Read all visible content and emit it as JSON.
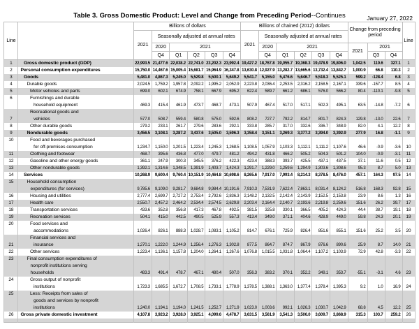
{
  "page": {
    "date": "January 27, 2022",
    "title_main": "Table 3. Gross Domestic Product: Level and Change from Preceding Period",
    "title_suffix": "--Continues"
  },
  "header": {
    "line_label": "Line",
    "group_current": "Billions of dollars",
    "group_chained": "Billions of chained (2012) dollars",
    "group_change": "Change from preceding period",
    "saar": "Seasonally adjusted at annual rates",
    "year_2021": "2021",
    "year_2020": "2020",
    "q_labels": [
      "Q4",
      "Q1",
      "Q2",
      "Q3",
      "Q4"
    ],
    "change_year": "2021",
    "change_year_group": "2021",
    "change_quarters": [
      "Q3",
      "Q4"
    ]
  },
  "rows": [
    {
      "line": 1,
      "label_lines": [
        "Gross domestic product (GDP)"
      ],
      "indent": 1,
      "bold": true,
      "values": [
        "22,993.5",
        "21,477.6",
        "22,038.2",
        "22,741.0",
        "23,202.3",
        "23,992.4",
        "19,427.2",
        "18,767.8",
        "19,055.7",
        "19,368.3",
        "19,478.9",
        "19,806.0",
        "1,042.5",
        "110.6",
        "327.1"
      ]
    },
    {
      "line": 2,
      "label_lines": [
        "Personal consumption expenditures"
      ],
      "indent": 0,
      "bold": true,
      "values": [
        "15,750.0",
        "14,467.6",
        "15,005.4",
        "15,681.7",
        "15,964.9",
        "16,347.8",
        "13,630.8",
        "12,927.9",
        "13,282.7",
        "13,665.6",
        "13,732.4",
        "13,842.7",
        "1,000.9",
        "66.8",
        "110.3"
      ]
    },
    {
      "line": 3,
      "label_lines": [
        "Goods"
      ],
      "indent": 1,
      "bold": true,
      "values": [
        "5,481.0",
        "4,867.3",
        "5,245.0",
        "5,529.8",
        "5,500.1",
        "5,649.2",
        "5,541.7",
        "5,155.0",
        "5,476.6",
        "5,646.7",
        "5,518.3",
        "5,525.1",
        "599.2",
        "-128.4",
        "6.8"
      ]
    },
    {
      "line": 4,
      "label_lines": [
        "Durable goods"
      ],
      "indent": 2,
      "bold": false,
      "values": [
        "2,024.5",
        "1,759.2",
        "1,957.8",
        "2,092.2",
        "1,995.2",
        "2,052.9",
        "2,223.8",
        "2,036.4",
        "2,253.5",
        "2,316.2",
        "2,158.5",
        "2,167.1",
        "339.6",
        "-157.7",
        "8.5"
      ]
    },
    {
      "line": 5,
      "label_lines": [
        "Motor vehicles and parts"
      ],
      "indent": 3,
      "bold": false,
      "values": [
        "699.0",
        "602.1",
        "674.9",
        "758.1",
        "667.9",
        "695.2",
        "622.4",
        "589.7",
        "661.2",
        "686.1",
        "576.0",
        "566.2",
        "80.4",
        "-110.1",
        "-9.8"
      ]
    },
    {
      "line": 6,
      "label_lines": [
        "Furnishings and durable",
        "household equipment"
      ],
      "indent": 3,
      "bold": false,
      "num_pos": "vt",
      "values": [
        "469.3",
        "415.4",
        "461.9",
        "473.7",
        "468.7",
        "473.1",
        "507.9",
        "467.4",
        "517.0",
        "517.1",
        "502.3",
        "495.1",
        "63.5",
        "-14.8",
        "-7.2"
      ]
    },
    {
      "line": 7,
      "label_lines": [
        "Recreational goods and",
        "vehicles"
      ],
      "indent": 3,
      "bold": false,
      "num_pos": "vb",
      "values": [
        "577.0",
        "508.7",
        "559.4",
        "580.8",
        "575.0",
        "592.6",
        "808.2",
        "727.7",
        "792.2",
        "814.7",
        "801.7",
        "824.3",
        "129.8",
        "-13.0",
        "22.6"
      ]
    },
    {
      "line": 8,
      "label_lines": [
        "Other durable goods"
      ],
      "indent": 3,
      "bold": false,
      "values": [
        "279.2",
        "233.1",
        "261.7",
        "279.6",
        "283.6",
        "292.1",
        "333.8",
        "285.7",
        "317.0",
        "332.6",
        "336.7",
        "348.9",
        "82.0",
        "4.1",
        "12.2"
      ]
    },
    {
      "line": 9,
      "label_lines": [
        "Nondurable goods"
      ],
      "indent": 2,
      "bold": true,
      "values": [
        "3,456.5",
        "3,108.1",
        "3,287.2",
        "3,437.6",
        "3,505.0",
        "3,596.3",
        "3,358.4",
        "3,151.1",
        "3,269.3",
        "3,377.2",
        "3,394.0",
        "3,392.9",
        "277.9",
        "16.8",
        "-1.1"
      ]
    },
    {
      "line": 10,
      "label_lines": [
        "Food and beverages purchased",
        "for off-premises consumption"
      ],
      "indent": 3,
      "bold": false,
      "num_pos": "vt",
      "values": [
        "1,234.7",
        "1,150.0",
        "1,201.5",
        "1,223.4",
        "1,245.3",
        "1,268.5",
        "1,108.5",
        "1,057.9",
        "1,103.3",
        "1,112.1",
        "1,111.2",
        "1,107.6",
        "46.6",
        "-0.9",
        "-3.6"
      ]
    },
    {
      "line": 11,
      "label_lines": [
        "Clothing and footwear"
      ],
      "indent": 3,
      "bold": false,
      "values": [
        "468.7",
        "395.6",
        "436.8",
        "477.0",
        "479.7",
        "481.2",
        "494.2",
        "431.8",
        "466.2",
        "505.2",
        "504.3",
        "501.2",
        "104.0",
        "-0.9",
        "-3.1"
      ]
    },
    {
      "line": 12,
      "label_lines": [
        "Gasoline and other energy goods"
      ],
      "indent": 3,
      "bold": false,
      "values": [
        "361.1",
        "247.9",
        "300.3",
        "345.5",
        "376.2",
        "422.3",
        "423.4",
        "388.3",
        "393.7",
        "425.5",
        "437.1",
        "437.5",
        "37.1",
        "11.6",
        "0.5"
      ]
    },
    {
      "line": 13,
      "label_lines": [
        "Other nondurable goods"
      ],
      "indent": 3,
      "bold": false,
      "values": [
        "1,392.1",
        "1,314.6",
        "1,348.5",
        "1,391.9",
        "1,403.7",
        "1,424.3",
        "1,291.7",
        "1,229.0",
        "1,259.6",
        "1,294.9",
        "1,303.6",
        "1,308.6",
        "95.3",
        "8.7",
        "5.0"
      ]
    },
    {
      "line": 14,
      "label_lines": [
        "Services"
      ],
      "indent": 1,
      "bold": true,
      "values": [
        "10,268.9",
        "9,600.4",
        "9,760.4",
        "10,151.9",
        "10,464.8",
        "10,698.6",
        "8,265.6",
        "7,917.0",
        "7,993.4",
        "8,214.3",
        "8,378.5",
        "8,476.0",
        "457.1",
        "164.3",
        "97.5"
      ]
    },
    {
      "line": 15,
      "label_lines": [
        "Household consumption",
        "expenditures (for services)"
      ],
      "indent": 2,
      "bold": false,
      "num_pos": "vt",
      "values": [
        "9,785.6",
        "9,109.0",
        "9,281.7",
        "9,684.8",
        "9,984.4",
        "10,191.6",
        "7,910.3",
        "7,531.9",
        "7,622.4",
        "7,863.1",
        "8,031.4",
        "8,124.2",
        "516.8",
        "168.3",
        "92.8"
      ]
    },
    {
      "line": 16,
      "label_lines": [
        "Housing and utilities"
      ],
      "indent": 3,
      "bold": false,
      "values": [
        "2,777.4",
        "2,699.7",
        "2,727.2",
        "2,753.4",
        "2,792.6",
        "2,836.3",
        "2,148.2",
        "2,132.5",
        "2,142.4",
        "2,143.9",
        "2,152.5",
        "2,153.8",
        "23.9",
        "8.6",
        "1.3"
      ]
    },
    {
      "line": 17,
      "label_lines": [
        "Health care"
      ],
      "indent": 3,
      "bold": false,
      "values": [
        "2,550.7",
        "2,457.2",
        "2,464.2",
        "2,534.4",
        "2,574.5",
        "2,629.8",
        "2,203.4",
        "2,164.4",
        "2,140.7",
        "2,193.6",
        "2,219.8",
        "2,259.6",
        "151.6",
        "26.2",
        "39.7"
      ]
    },
    {
      "line": 18,
      "label_lines": [
        "Transportation services"
      ],
      "indent": 3,
      "bold": false,
      "values": [
        "433.6",
        "352.8",
        "356.8",
        "417.3",
        "467.8",
        "492.5",
        "381.5",
        "325.8",
        "330.1",
        "366.5",
        "405.2",
        "424.3",
        "44.4",
        "38.7",
        "19.1"
      ]
    },
    {
      "line": 19,
      "label_lines": [
        "Recreation services"
      ],
      "indent": 3,
      "bold": false,
      "values": [
        "504.1",
        "415.0",
        "442.5",
        "490.5",
        "525.9",
        "557.3",
        "413.4",
        "349.0",
        "371.1",
        "404.6",
        "428.9",
        "449.0",
        "59.8",
        "24.3",
        "20.1"
      ]
    },
    {
      "line": 20,
      "label_lines": [
        "Food services and",
        "accommodations"
      ],
      "indent": 3,
      "bold": false,
      "num_pos": "vt",
      "values": [
        "1,026.4",
        "826.1",
        "888.3",
        "1,028.7",
        "1,083.1",
        "1,105.2",
        "814.7",
        "676.1",
        "725.9",
        "826.4",
        "851.6",
        "855.1",
        "151.6",
        "25.2",
        "3.5"
      ]
    },
    {
      "line": 21,
      "label_lines": [
        "Financial services and",
        "insurance"
      ],
      "indent": 3,
      "bold": false,
      "num_pos": "vb",
      "values": [
        "1,270.1",
        "1,222.0",
        "1,244.9",
        "1,256.4",
        "1,276.3",
        "1,302.8",
        "877.5",
        "864.7",
        "874.7",
        "867.9",
        "876.6",
        "890.6",
        "25.9",
        "8.7",
        "14.0"
      ]
    },
    {
      "line": 22,
      "label_lines": [
        "Other services"
      ],
      "indent": 3,
      "bold": false,
      "values": [
        "1,223.4",
        "1,136.1",
        "1,157.8",
        "1,204.0",
        "1,264.1",
        "1,267.6",
        "1,076.8",
        "1,015.5",
        "1,031.8",
        "1,064.4",
        "1,107.2",
        "1,103.9",
        "72.9",
        "42.8",
        "-3.3"
      ]
    },
    {
      "line": 23,
      "label_lines": [
        "Final consumption expenditures of",
        "nonprofit institutions serving",
        "households"
      ],
      "indent": 2,
      "bold": false,
      "num_pos": "vt",
      "values": [
        "483.3",
        "491.4",
        "478.7",
        "467.1",
        "480.4",
        "507.0",
        "356.3",
        "383.2",
        "370.1",
        "352.2",
        "349.1",
        "353.7",
        "-55.1",
        "-3.1",
        "4.6"
      ]
    },
    {
      "line": 24,
      "label_lines": [
        "Gross output of nonprofit",
        "institutions"
      ],
      "indent": 3,
      "bold": false,
      "num_pos": "vt",
      "values": [
        "1,723.3",
        "1,685.5",
        "1,672.7",
        "1,708.5",
        "1,733.1",
        "1,778.9",
        "1,378.5",
        "1,388.1",
        "1,363.0",
        "1,377.4",
        "1,378.4",
        "1,395.3",
        "9.2",
        "1.0",
        "16.9"
      ]
    },
    {
      "line": 25,
      "label_lines": [
        "Less: Receipts from sales of",
        "goods and services by nonprofit",
        "institutions"
      ],
      "indent": 3,
      "bold": false,
      "num_pos": "vt",
      "values": [
        "1,240.0",
        "1,194.1",
        "1,194.0",
        "1,241.5",
        "1,252.7",
        "1,271.9",
        "1,023.0",
        "1,003.6",
        "992.1",
        "1,026.3",
        "1,030.7",
        "1,042.9",
        "68.8",
        "4.5",
        "12.2"
      ]
    },
    {
      "line": 26,
      "label_lines": [
        "Gross private domestic investment"
      ],
      "indent": 0,
      "bold": true,
      "values": [
        "4,107.8",
        "3,923.2",
        "3,928.0",
        "3,925.1",
        "4,099.6",
        "4,478.7",
        "3,631.5",
        "3,561.9",
        "3,541.3",
        "3,506.0",
        "3,609.7",
        "3,868.9",
        "315.3",
        "103.7",
        "259.2"
      ]
    }
  ]
}
